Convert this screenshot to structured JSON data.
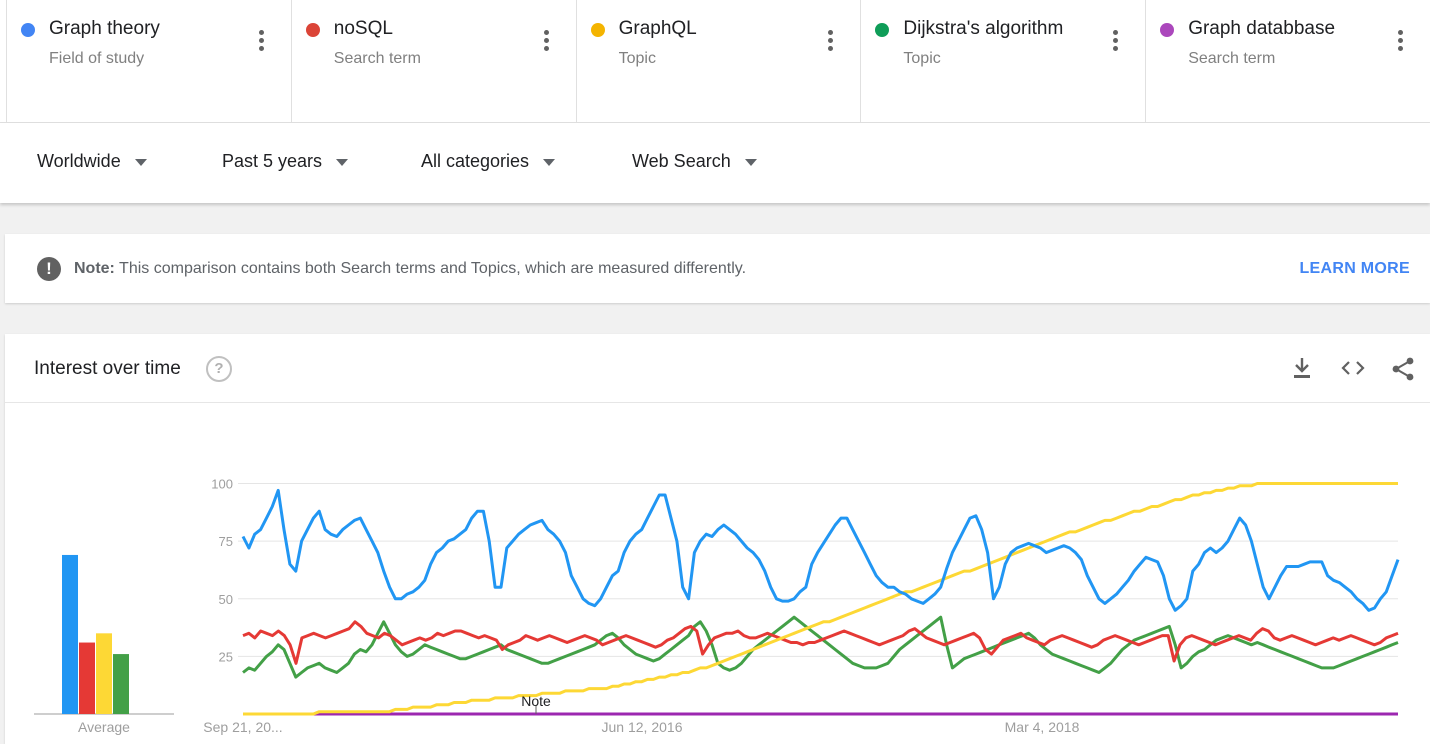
{
  "terms": [
    {
      "name": "Graph theory",
      "kind": "Field of study",
      "color": "#4285f4"
    },
    {
      "name": "noSQL",
      "kind": "Search term",
      "color": "#db4437"
    },
    {
      "name": "GraphQL",
      "kind": "Topic",
      "color": "#f4b400"
    },
    {
      "name": "Dijkstra's algorithm",
      "kind": "Topic",
      "color": "#0f9d58"
    },
    {
      "name": "Graph databbase",
      "kind": "Search term",
      "color": "#ab47bc"
    }
  ],
  "filters": {
    "region": "Worldwide",
    "time": "Past 5 years",
    "category": "All categories",
    "property": "Web Search"
  },
  "note": {
    "label": "Note:",
    "text": "This comparison contains both Search terms and Topics, which are measured differently.",
    "link": "LEARN MORE"
  },
  "card": {
    "title": "Interest over time",
    "help_glyph": "?"
  },
  "chart_data": {
    "type": "line",
    "title": "Interest over time",
    "ylim": [
      0,
      100
    ],
    "y_ticks": [
      "100",
      "75",
      "50",
      "25"
    ],
    "x_ticks": [
      "Sep 21, 20...",
      "Jun 12, 2016",
      "Mar 4, 2018"
    ],
    "annotation": "Note",
    "average_label": "Average",
    "grid": true,
    "colors": {
      "graph_theory": "#2196f3",
      "nosql": "#e53935",
      "graphql": "#fdd835",
      "dijkstra": "#43a047",
      "graph_database": "#9c27b0"
    },
    "averages": {
      "graph_theory": 69,
      "nosql": 31,
      "graphql": 35,
      "dijkstra": 26,
      "graph_database": 0
    },
    "series": [
      {
        "name": "Graph theory",
        "key": "graph_theory",
        "values": [
          77,
          72,
          78,
          80,
          85,
          90,
          97,
          80,
          65,
          62,
          75,
          80,
          85,
          88,
          80,
          78,
          77,
          80,
          82,
          84,
          85,
          80,
          75,
          70,
          62,
          55,
          50,
          50,
          52,
          53,
          55,
          58,
          65,
          70,
          72,
          75,
          76,
          78,
          80,
          85,
          88,
          88,
          75,
          55,
          55,
          72,
          75,
          78,
          80,
          82,
          83,
          84,
          80,
          78,
          75,
          70,
          60,
          55,
          50,
          48,
          47,
          50,
          55,
          60,
          62,
          70,
          75,
          78,
          80,
          85,
          90,
          95,
          95,
          85,
          75,
          55,
          50,
          70,
          75,
          78,
          77,
          80,
          82,
          80,
          78,
          75,
          72,
          70,
          67,
          62,
          55,
          50,
          49,
          49,
          50,
          53,
          55,
          65,
          70,
          74,
          78,
          82,
          85,
          85,
          80,
          75,
          70,
          65,
          60,
          57,
          55,
          55,
          53,
          52,
          50,
          49,
          48,
          50,
          52,
          55,
          63,
          70,
          75,
          80,
          85,
          86,
          80,
          70,
          50,
          55,
          65,
          70,
          72,
          73,
          74,
          73,
          72,
          70,
          71,
          72,
          73,
          72,
          70,
          67,
          60,
          55,
          50,
          48,
          50,
          52,
          55,
          58,
          62,
          65,
          68,
          67,
          66,
          60,
          50,
          45,
          47,
          50,
          62,
          65,
          70,
          72,
          70,
          72,
          75,
          80,
          85,
          82,
          75,
          65,
          55,
          50,
          55,
          60,
          64,
          64,
          64,
          65,
          66,
          66,
          66,
          60,
          58,
          57,
          55,
          53,
          50,
          48,
          45,
          46,
          50,
          53,
          60,
          67
        ]
      },
      {
        "name": "noSQL",
        "key": "nosql",
        "values": [
          34,
          35,
          33,
          36,
          35,
          34,
          36,
          34,
          30,
          22,
          33,
          34,
          35,
          34,
          33,
          34,
          35,
          36,
          37,
          40,
          38,
          35,
          34,
          33,
          35,
          34,
          32,
          30,
          31,
          32,
          33,
          32,
          33,
          35,
          34,
          35,
          36,
          36,
          35,
          34,
          33,
          34,
          33,
          32,
          28,
          30,
          31,
          32,
          34,
          33,
          32,
          33,
          34,
          33,
          32,
          31,
          32,
          33,
          34,
          33,
          32,
          30,
          31,
          32,
          33,
          34,
          33,
          32,
          31,
          30,
          29,
          30,
          32,
          33,
          35,
          37,
          38,
          36,
          26,
          30,
          33,
          34,
          35,
          35,
          36,
          34,
          33,
          33,
          34,
          35,
          34,
          33,
          32,
          31,
          31,
          30,
          31,
          31,
          32,
          33,
          34,
          35,
          36,
          35,
          34,
          33,
          32,
          31,
          30,
          31,
          32,
          33,
          34,
          36,
          37,
          35,
          33,
          32,
          31,
          30,
          31,
          32,
          33,
          34,
          35,
          33,
          28,
          26,
          29,
          32,
          33,
          34,
          35,
          33,
          32,
          31,
          30,
          32,
          33,
          34,
          33,
          32,
          31,
          30,
          29,
          30,
          32,
          33,
          34,
          33,
          32,
          31,
          30,
          31,
          32,
          33,
          34,
          34,
          23,
          30,
          33,
          34,
          33,
          32,
          31,
          30,
          31,
          32,
          33,
          34,
          33,
          32,
          35,
          37,
          36,
          33,
          32,
          33,
          34,
          33,
          32,
          31,
          30,
          31,
          32,
          33,
          32,
          33,
          34,
          33,
          32,
          31,
          30,
          31,
          33,
          34,
          35
        ]
      },
      {
        "name": "GraphQL",
        "key": "graphql",
        "values": [
          0,
          0,
          0,
          0,
          0,
          0,
          0,
          0,
          0,
          0,
          0,
          0,
          0,
          1,
          1,
          1,
          1,
          1,
          1,
          1,
          1,
          1,
          1,
          1,
          1,
          1,
          2,
          2,
          2,
          3,
          3,
          3,
          3,
          4,
          4,
          4,
          5,
          5,
          5,
          6,
          6,
          6,
          6,
          7,
          7,
          7,
          7,
          8,
          8,
          8,
          8,
          9,
          9,
          9,
          9,
          10,
          10,
          10,
          10,
          11,
          11,
          11,
          11,
          12,
          12,
          13,
          13,
          14,
          14,
          15,
          15,
          16,
          16,
          17,
          17,
          18,
          18,
          19,
          20,
          20,
          21,
          22,
          23,
          24,
          25,
          26,
          27,
          28,
          29,
          30,
          31,
          32,
          33,
          34,
          35,
          36,
          37,
          38,
          39,
          40,
          40,
          41,
          42,
          43,
          44,
          45,
          46,
          47,
          48,
          49,
          50,
          51,
          52,
          53,
          53,
          54,
          55,
          56,
          57,
          58,
          59,
          60,
          61,
          62,
          62,
          63,
          64,
          65,
          66,
          67,
          68,
          69,
          70,
          71,
          72,
          73,
          74,
          75,
          76,
          77,
          78,
          79,
          79,
          80,
          81,
          82,
          83,
          84,
          84,
          85,
          86,
          87,
          88,
          88,
          89,
          90,
          90,
          91,
          92,
          93,
          93,
          94,
          95,
          95,
          96,
          96,
          97,
          97,
          98,
          98,
          99,
          99,
          99,
          100,
          100,
          100,
          100,
          100,
          100,
          100,
          100,
          100,
          100,
          100,
          100,
          100,
          100,
          100,
          100,
          100,
          100,
          100,
          100,
          100,
          100,
          100,
          100,
          100
        ]
      },
      {
        "name": "Dijkstra's algorithm",
        "key": "dijkstra",
        "values": [
          18,
          20,
          19,
          22,
          25,
          27,
          30,
          28,
          22,
          16,
          18,
          20,
          21,
          22,
          20,
          19,
          18,
          20,
          22,
          26,
          28,
          27,
          30,
          35,
          40,
          35,
          30,
          27,
          25,
          26,
          28,
          30,
          29,
          28,
          27,
          26,
          25,
          24,
          24,
          25,
          26,
          27,
          28,
          29,
          30,
          28,
          27,
          26,
          25,
          24,
          23,
          22,
          22,
          23,
          24,
          25,
          26,
          27,
          28,
          29,
          30,
          32,
          34,
          35,
          33,
          30,
          28,
          26,
          25,
          24,
          23,
          24,
          26,
          28,
          30,
          32,
          34,
          38,
          40,
          36,
          30,
          22,
          20,
          19,
          20,
          22,
          25,
          28,
          30,
          32,
          34,
          36,
          38,
          40,
          42,
          40,
          38,
          36,
          34,
          32,
          30,
          28,
          26,
          24,
          22,
          21,
          20,
          20,
          20,
          21,
          22,
          25,
          28,
          30,
          32,
          34,
          36,
          38,
          40,
          42,
          30,
          20,
          22,
          24,
          25,
          26,
          27,
          28,
          29,
          30,
          31,
          32,
          33,
          34,
          35,
          33,
          30,
          28,
          26,
          25,
          24,
          23,
          22,
          21,
          20,
          19,
          18,
          20,
          22,
          25,
          28,
          30,
          32,
          33,
          34,
          35,
          36,
          37,
          38,
          30,
          20,
          22,
          25,
          27,
          28,
          30,
          32,
          33,
          34,
          33,
          32,
          31,
          30,
          31,
          30,
          29,
          28,
          27,
          26,
          25,
          24,
          23,
          22,
          21,
          20,
          20,
          20,
          21,
          22,
          23,
          24,
          25,
          26,
          27,
          28,
          29,
          30,
          31
        ]
      },
      {
        "name": "Graph databbase",
        "key": "graph_database",
        "values": [
          0
        ]
      }
    ]
  }
}
